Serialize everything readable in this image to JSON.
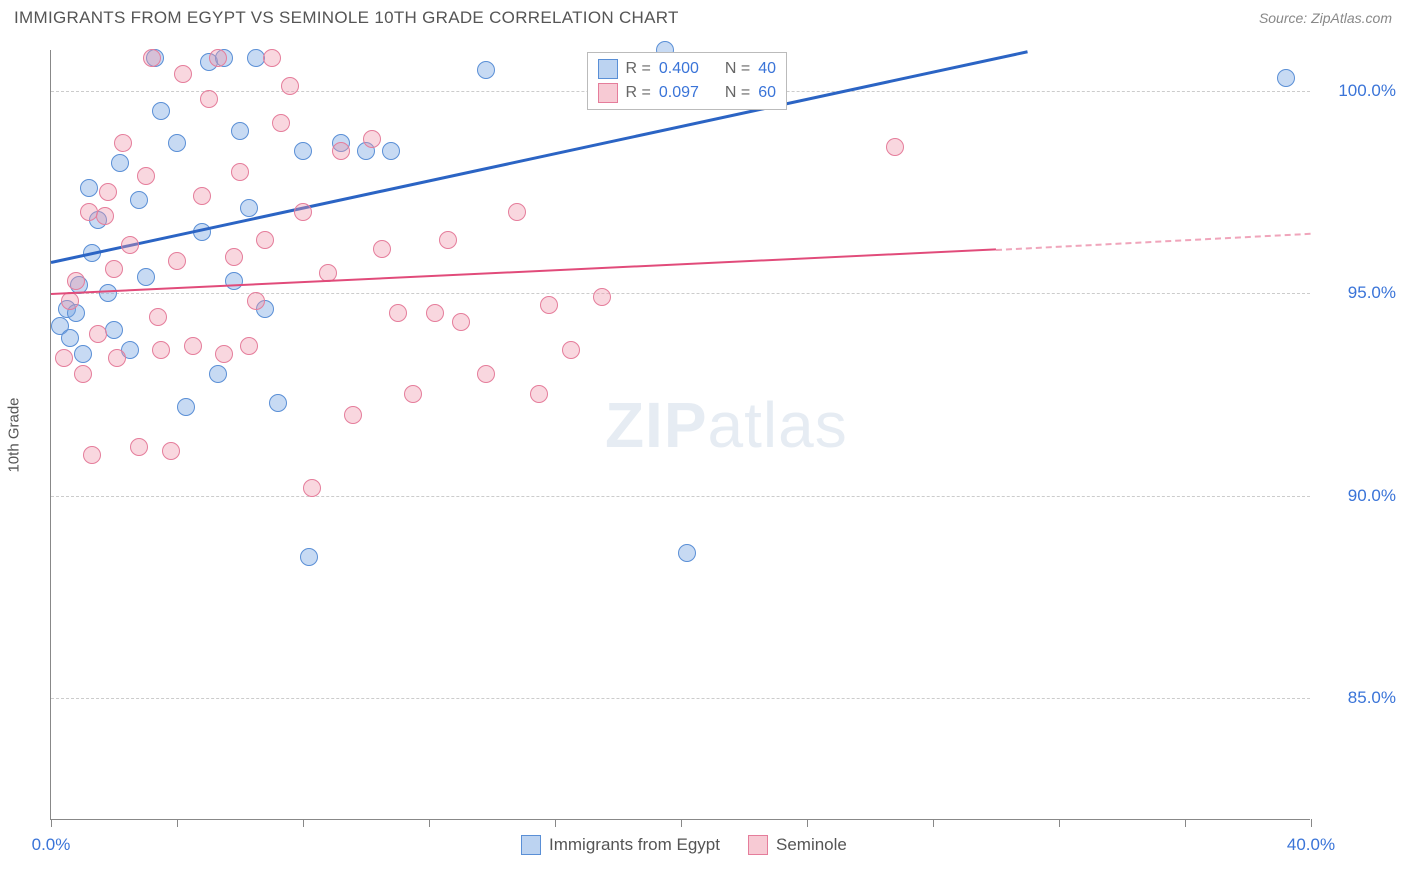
{
  "title": "IMMIGRANTS FROM EGYPT VS SEMINOLE 10TH GRADE CORRELATION CHART",
  "source": "Source: ZipAtlas.com",
  "ylabel": "10th Grade",
  "watermark_left": "ZIP",
  "watermark_right": "atlas",
  "chart": {
    "type": "scatter",
    "xlim": [
      0,
      40
    ],
    "ylim": [
      82,
      101
    ],
    "ytick_labels": [
      "100.0%",
      "95.0%",
      "90.0%",
      "85.0%"
    ],
    "ytick_values": [
      100,
      95,
      90,
      85
    ],
    "xtick_labels": [
      "0.0%",
      "40.0%"
    ],
    "xtick_values": [
      0,
      40
    ],
    "xtick_positions": [
      0,
      4,
      8,
      12,
      16,
      20,
      24,
      28,
      32,
      36,
      40
    ],
    "grid_color": "#cccccc",
    "background_color": "#ffffff",
    "axis_color": "#888888",
    "marker_size": 18,
    "series": [
      {
        "name": "Immigrants from Egypt",
        "color_fill": "rgba(121,167,227,0.42)",
        "color_stroke": "#5a8fd6",
        "trend_color": "#2b64c4",
        "R": "0.400",
        "N": "40",
        "trend": {
          "x1": 0,
          "y1": 95.8,
          "x2": 31,
          "y2": 101
        },
        "points": [
          [
            0.3,
            94.2
          ],
          [
            0.5,
            94.6
          ],
          [
            0.6,
            93.9
          ],
          [
            0.8,
            94.5
          ],
          [
            0.9,
            95.2
          ],
          [
            1.0,
            93.5
          ],
          [
            1.2,
            97.6
          ],
          [
            1.3,
            96.0
          ],
          [
            1.5,
            96.8
          ],
          [
            1.8,
            95.0
          ],
          [
            2.0,
            94.1
          ],
          [
            2.2,
            98.2
          ],
          [
            2.5,
            93.6
          ],
          [
            2.8,
            97.3
          ],
          [
            3.0,
            95.4
          ],
          [
            3.3,
            100.8
          ],
          [
            3.5,
            99.5
          ],
          [
            4.0,
            98.7
          ],
          [
            4.3,
            92.2
          ],
          [
            4.8,
            96.5
          ],
          [
            5.0,
            100.7
          ],
          [
            5.3,
            93.0
          ],
          [
            5.5,
            100.8
          ],
          [
            5.8,
            95.3
          ],
          [
            6.0,
            99.0
          ],
          [
            6.3,
            97.1
          ],
          [
            6.5,
            100.8
          ],
          [
            6.8,
            94.6
          ],
          [
            7.2,
            92.3
          ],
          [
            8.0,
            98.5
          ],
          [
            8.2,
            88.5
          ],
          [
            9.2,
            98.7
          ],
          [
            10.0,
            98.5
          ],
          [
            10.8,
            98.5
          ],
          [
            13.8,
            100.5
          ],
          [
            19.0,
            99.8
          ],
          [
            19.5,
            101.0
          ],
          [
            20.2,
            88.6
          ],
          [
            39.2,
            100.3
          ]
        ]
      },
      {
        "name": "Seminole",
        "color_fill": "rgba(240,150,170,0.38)",
        "color_stroke": "#e57d9b",
        "trend_color": "#e14b7a",
        "R": "0.097",
        "N": "60",
        "trend": {
          "x1": 0,
          "y1": 95.0,
          "x2": 30,
          "y2": 96.1,
          "dash_to_x": 40,
          "dash_to_y": 96.5
        },
        "points": [
          [
            0.4,
            93.4
          ],
          [
            0.6,
            94.8
          ],
          [
            0.8,
            95.3
          ],
          [
            1.0,
            93.0
          ],
          [
            1.2,
            97.0
          ],
          [
            1.3,
            91.0
          ],
          [
            1.5,
            94.0
          ],
          [
            1.7,
            96.9
          ],
          [
            1.8,
            97.5
          ],
          [
            2.0,
            95.6
          ],
          [
            2.1,
            93.4
          ],
          [
            2.3,
            98.7
          ],
          [
            2.5,
            96.2
          ],
          [
            2.8,
            91.2
          ],
          [
            3.0,
            97.9
          ],
          [
            3.2,
            100.8
          ],
          [
            3.4,
            94.4
          ],
          [
            3.5,
            93.6
          ],
          [
            3.8,
            91.1
          ],
          [
            4.0,
            95.8
          ],
          [
            4.2,
            100.4
          ],
          [
            4.5,
            93.7
          ],
          [
            4.8,
            97.4
          ],
          [
            5.0,
            99.8
          ],
          [
            5.3,
            100.8
          ],
          [
            5.5,
            93.5
          ],
          [
            5.8,
            95.9
          ],
          [
            6.0,
            98.0
          ],
          [
            6.3,
            93.7
          ],
          [
            6.5,
            94.8
          ],
          [
            6.8,
            96.3
          ],
          [
            7.0,
            100.8
          ],
          [
            7.3,
            99.2
          ],
          [
            7.6,
            100.1
          ],
          [
            8.0,
            97.0
          ],
          [
            8.3,
            90.2
          ],
          [
            8.8,
            95.5
          ],
          [
            9.2,
            98.5
          ],
          [
            9.6,
            92.0
          ],
          [
            10.2,
            98.8
          ],
          [
            10.5,
            96.1
          ],
          [
            11.0,
            94.5
          ],
          [
            11.5,
            92.5
          ],
          [
            12.2,
            94.5
          ],
          [
            12.6,
            96.3
          ],
          [
            13.0,
            94.3
          ],
          [
            13.8,
            93.0
          ],
          [
            14.8,
            97.0
          ],
          [
            15.5,
            92.5
          ],
          [
            15.8,
            94.7
          ],
          [
            16.5,
            93.6
          ],
          [
            17.5,
            94.9
          ],
          [
            26.8,
            98.6
          ]
        ]
      }
    ]
  },
  "legend_top": {
    "rows": [
      {
        "sw": "blue",
        "R_label": "R =",
        "R": "0.400",
        "N_label": "N =",
        "N": "40"
      },
      {
        "sw": "pink",
        "R_label": "R =",
        "R": "0.097",
        "N_label": "N =",
        "N": "60"
      }
    ]
  },
  "legend_bottom": {
    "items": [
      {
        "sw": "blue",
        "label": "Immigrants from Egypt"
      },
      {
        "sw": "pink",
        "label": "Seminole"
      }
    ]
  }
}
